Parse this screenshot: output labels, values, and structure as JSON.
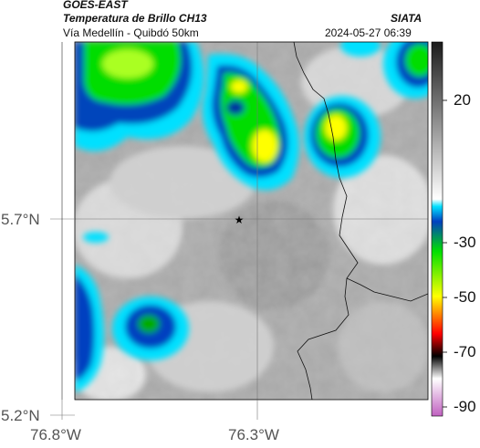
{
  "header": {
    "satellite": "GOES-EAST",
    "product": "Temperatura de Brillo CH13",
    "route": "Vía Medellín - Quibdó 50km",
    "org": "SIATA",
    "timestamp": "2024-05-27 06:39"
  },
  "map": {
    "lat_ticks": [
      "5.7°N",
      "5.2°N"
    ],
    "lon_ticks": [
      "76.8°W",
      "76.3°W"
    ],
    "marker": "star-marker"
  },
  "colorbar": {
    "ticks": [
      "20",
      "-30",
      "-50",
      "-70",
      "-90"
    ],
    "colors": [
      "#222222",
      "#c8c8c8",
      "#00d5ff",
      "#00ff00",
      "#ffff00",
      "#ff3300",
      "#000000",
      "#c060c0"
    ]
  },
  "colors": {
    "cloud_gray": "#9a9a9a",
    "cold_blue": "#0033aa",
    "cyan": "#00e0ff",
    "green": "#00ee00",
    "yellow": "#ffff00"
  }
}
